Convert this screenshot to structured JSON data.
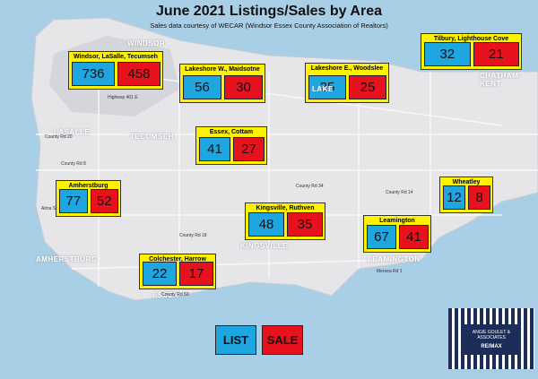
{
  "header": {
    "title": "June 2021 Listings/Sales by Area",
    "subtitle": "Sales data courtesy of WECAR (Windsor Essex County Association of Realtors)"
  },
  "areas": [
    {
      "name": "Windsor, LaSalle, Tecumseh",
      "list": 736,
      "sale": 458
    },
    {
      "name": "Lakeshore W., Maidsotne",
      "list": 56,
      "sale": 30
    },
    {
      "name": "Lakeshore E., Woodslee",
      "list": 25,
      "sale": 25
    },
    {
      "name": "Tilbury, Lighthouse Cove",
      "list": 32,
      "sale": 21
    },
    {
      "name": "Essex, Cottam",
      "list": 41,
      "sale": 27
    },
    {
      "name": "Amherstburg",
      "list": 77,
      "sale": 52
    },
    {
      "name": "Wheatley",
      "list": 12,
      "sale": 8
    },
    {
      "name": "Kingsville, Ruthven",
      "list": 48,
      "sale": 35
    },
    {
      "name": "Leamington",
      "list": 67,
      "sale": 41
    },
    {
      "name": "Colchester, Harrow",
      "list": 22,
      "sale": 17
    }
  ],
  "legend": {
    "list": "LIST",
    "sale": "SALE"
  },
  "logo": {
    "name": "ANGIE GOULET & ASSOCIATES",
    "brand": "RE/MAX"
  },
  "map_labels": [
    "WINDSOR",
    "LASALLE",
    "TECUMSEH",
    "AMHERSTBURG",
    "ESSEX",
    "KINGSVILLE",
    "LEAMINGTON",
    "CHATHAM-KENT",
    "LAKE"
  ],
  "road_labels": [
    "Highway 401 E",
    "County Rd 20",
    "County Rd 8",
    "County Rd 34",
    "County Rd 14",
    "County Rd 18",
    "County Rd 50",
    "Mersea Rd 1",
    "Alma St"
  ]
}
